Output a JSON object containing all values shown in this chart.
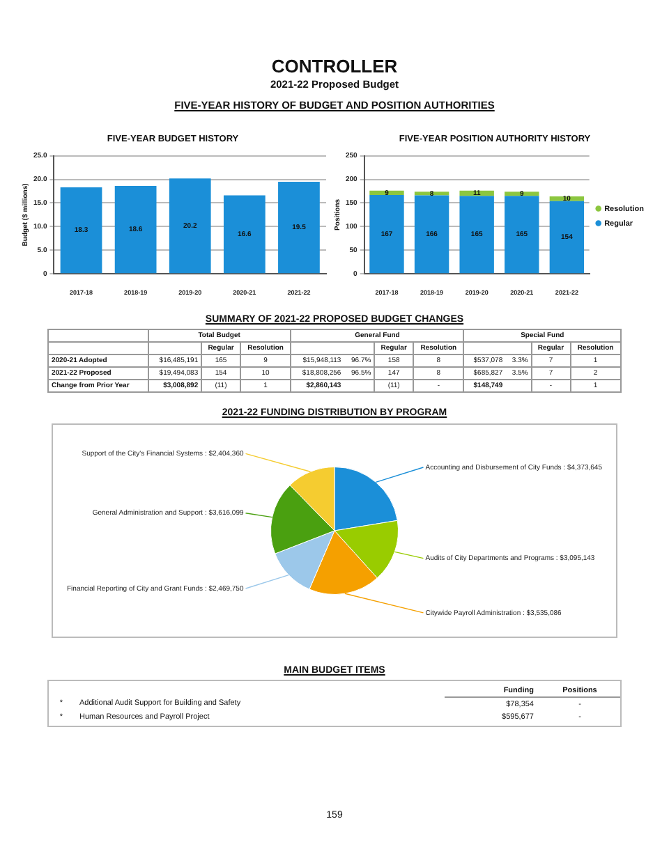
{
  "chart_data": [
    {
      "type": "other",
      "title": "CONTROLLER",
      "subtitle": "2021-22 Proposed Budget",
      "annotations": [
        "FIVE-YEAR HISTORY OF BUDGET AND POSITION AUTHORITIES"
      ]
    },
    {
      "type": "bar",
      "title": "FIVE-YEAR BUDGET HISTORY",
      "ylabel": "Budget ($ millions)",
      "categories": [
        "2017-18",
        "2018-19",
        "2019-20",
        "2020-21",
        "2021-22"
      ],
      "values": [
        18.3,
        18.6,
        20.2,
        16.6,
        19.5
      ],
      "color": "#1b8fd8",
      "ylim": [
        0,
        25
      ],
      "yticks": [
        0,
        {
          "value": 5,
          "label": "5.0"
        },
        {
          "value": 10,
          "label": "10.0"
        },
        {
          "value": 15,
          "label": "15.0"
        },
        {
          "value": 20,
          "label": "20.0"
        },
        {
          "value": 25,
          "label": "25.0"
        }
      ],
      "grid": "y",
      "data_labels": true
    },
    {
      "type": "bar",
      "stacked": true,
      "title": "FIVE-YEAR POSITION AUTHORITY HISTORY",
      "ylabel": "Positions",
      "categories": [
        "2017-18",
        "2018-19",
        "2019-20",
        "2020-21",
        "2021-22"
      ],
      "series": [
        {
          "name": "Regular",
          "color": "#1b8fd8",
          "values": [
            167,
            166,
            165,
            165,
            154
          ]
        },
        {
          "name": "Resolution",
          "color": "#8cc63f",
          "values": [
            9,
            8,
            11,
            9,
            10
          ]
        }
      ],
      "ylim": [
        0,
        250
      ],
      "yticks": [
        0,
        50,
        100,
        150,
        200,
        250
      ],
      "grid": "y",
      "legend": "right",
      "data_labels": true
    },
    {
      "type": "other",
      "title": "SUMMARY OF 2021-22 PROPOSED BUDGET CHANGES",
      "annotations": [
        "Total Budget",
        "General Fund",
        "Special Fund",
        "Regular",
        "Resolution",
        "Regular",
        "Resolution",
        "Regular",
        "Resolution",
        "2020-21 Adopted",
        "$16,485,191",
        "165",
        "9",
        "$15,948,113",
        "96.7%",
        "158",
        "8",
        "$537,078",
        "3.3%",
        "7",
        "1",
        "2021-22 Proposed",
        "$19,494,083",
        "154",
        "10",
        "$18,808,256",
        "96.5%",
        "147",
        "8",
        "$685,827",
        "3.5%",
        "7",
        "2",
        "Change from Prior Year",
        "$3,008,892",
        "(11)",
        "1",
        "$2,860,143",
        null,
        "(11)",
        "-",
        "$148,749",
        null,
        "-",
        "1"
      ]
    },
    {
      "type": "pie",
      "title": "2021-22 FUNDING DISTRIBUTION BY PROGRAM",
      "categories": [
        "Accounting and Disbursement of City Funds",
        "Audits of City Departments and Programs",
        "Citywide Payroll Administration",
        "Financial Reporting of City and Grant Funds",
        "General Administration and Support",
        "Support of the City's Financial Systems"
      ],
      "values": [
        4373645,
        3095143,
        3535086,
        2469750,
        3616099,
        2404360
      ],
      "value_labels": [
        "$4,373,645",
        "$3,095,143",
        "$3,535,086",
        "$2,469,750",
        "$3,616,099",
        "$2,404,360"
      ],
      "colors": [
        "#1b8fd8",
        "#99cc00",
        "#f5a000",
        "#9cc8ea",
        "#4aa010",
        "#f5cc30"
      ]
    },
    {
      "type": "other",
      "title": "MAIN BUDGET ITEMS",
      "annotations": [
        "Funding",
        "Positions",
        "*",
        "Additional Audit Support for Building and Safety",
        "$78,354",
        "-",
        "*",
        "Human Resources and Payroll Project",
        "$595,677",
        "-"
      ]
    },
    {
      "type": "other",
      "annotations": [
        "159"
      ]
    }
  ]
}
